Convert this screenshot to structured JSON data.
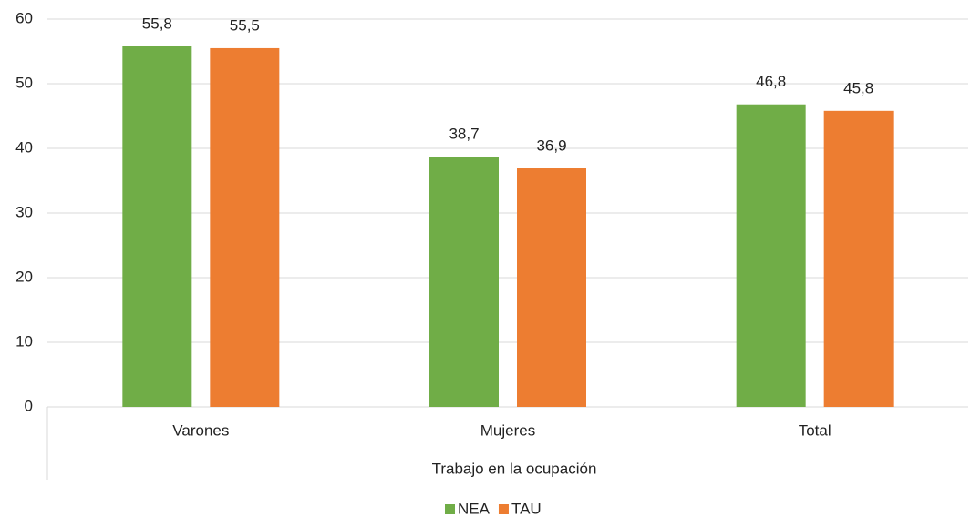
{
  "chart_data": {
    "type": "bar",
    "categories": [
      "Varones",
      "Mujeres",
      "Total"
    ],
    "xlabel": "Trabajo en la ocupación",
    "series": [
      {
        "name": "NEA",
        "color": "#70ad47",
        "values": [
          55.8,
          38.7,
          46.8
        ],
        "value_labels": [
          "55,8",
          "38,7",
          "46,8"
        ]
      },
      {
        "name": "TAU",
        "color": "#ed7d31",
        "values": [
          55.5,
          36.9,
          45.8
        ],
        "value_labels": [
          "55,5",
          "36,9",
          "45,8"
        ]
      }
    ],
    "ylim": [
      0,
      60
    ],
    "yticks": [
      0,
      10,
      20,
      30,
      40,
      50,
      60
    ],
    "grid": true,
    "legend": "bottom"
  }
}
